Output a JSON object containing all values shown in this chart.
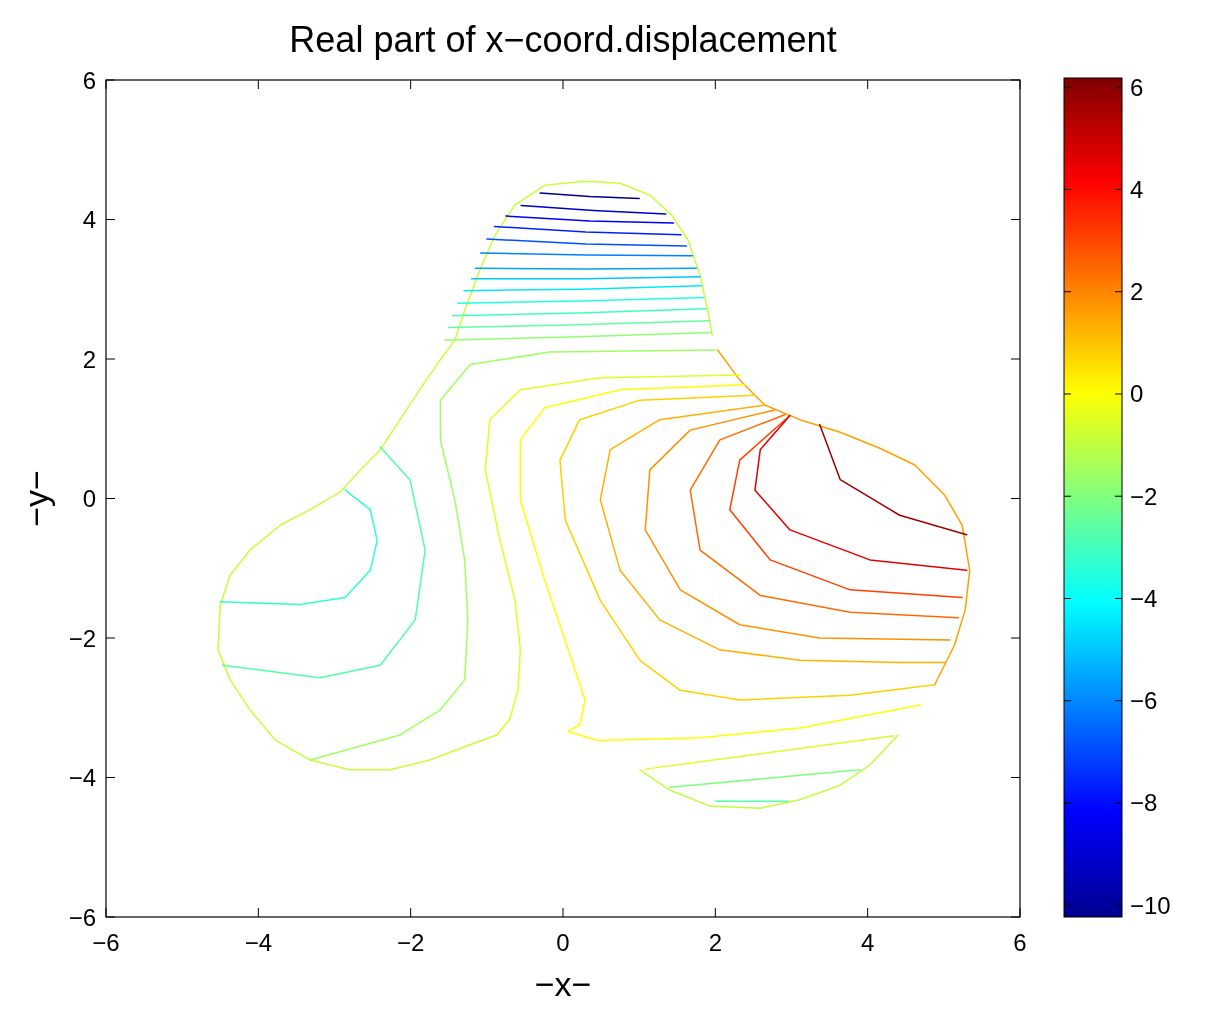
{
  "chart_data": {
    "type": "line",
    "title": "Real part of x−coord.displacement",
    "xlabel": "−x−",
    "ylabel": "−y−",
    "xlim": [
      -6,
      6
    ],
    "ylim": [
      -6,
      6
    ],
    "xticks": [
      {
        "value": -6,
        "label": "−6"
      },
      {
        "value": -4,
        "label": "−4"
      },
      {
        "value": -2,
        "label": "−2"
      },
      0,
      2,
      4,
      6
    ],
    "yticks": [
      {
        "value": -6,
        "label": "−6"
      },
      {
        "value": -4,
        "label": "−4"
      },
      {
        "value": -2,
        "label": "−2"
      },
      0,
      2,
      4,
      6
    ],
    "clim": [
      -10.23,
      6.18
    ],
    "cticks": [
      {
        "value": -10,
        "label": "−10"
      },
      {
        "value": -8,
        "label": "−8"
      },
      {
        "value": -6,
        "label": "−6"
      },
      {
        "value": -4,
        "label": "−4"
      },
      {
        "value": -2,
        "label": "−2"
      },
      0,
      2,
      4,
      6
    ],
    "grid": false,
    "marker": "none",
    "line_style": "solid",
    "series": [
      {
        "color": "#c8ff38",
        "x": [
          1.96,
          1.9,
          1.8,
          1.64,
          1.43,
          1.14,
          0.75,
          0.29,
          -0.24,
          -0.63,
          -0.89,
          -1.09,
          -1.29,
          -1.42,
          -1.61,
          -1.88,
          -2.14,
          -2.4,
          -2.66,
          -2.93,
          -3.32,
          -3.71,
          -4.11,
          -4.37,
          -4.5,
          -4.53,
          -4.37,
          -4.11,
          -3.78,
          -3.32,
          -2.8,
          -2.27,
          -1.75,
          -1.22,
          -0.87
        ],
        "values": [
          2.34,
          2.7,
          3.2,
          3.71,
          4.06,
          4.35,
          4.52,
          4.55,
          4.49,
          4.21,
          3.78,
          3.28,
          2.7,
          2.27,
          1.99,
          1.56,
          1.13,
          0.7,
          0.41,
          0.09,
          -0.16,
          -0.38,
          -0.74,
          -1.1,
          -1.53,
          -2.17,
          -2.6,
          -3.03,
          -3.46,
          -3.75,
          -3.89,
          -3.89,
          -3.75,
          -3.53,
          -3.39
        ]
      },
      {
        "color": "#ffa000",
        "x": [
          2.03,
          2.32,
          2.65,
          3.11,
          3.64,
          4.16,
          4.62,
          5.01,
          5.24,
          5.34,
          5.28,
          5.14,
          4.88
        ],
        "values": [
          2.13,
          1.7,
          1.34,
          1.13,
          0.95,
          0.72,
          0.48,
          0.05,
          -0.38,
          -1.03,
          -1.6,
          -2.1,
          -2.67
        ]
      },
      {
        "color": "#c0ff40",
        "x": [
          1.01,
          1.4,
          1.93,
          2.59,
          3.11,
          3.64,
          4.03,
          4.4
        ],
        "values": [
          -3.89,
          -4.18,
          -4.41,
          -4.44,
          -4.32,
          -4.11,
          -3.82,
          -3.39
        ]
      },
      {
        "color": "#d8ff28",
        "x": [
          1.08,
          4.35
        ],
        "values": [
          -3.88,
          -3.4
        ]
      },
      {
        "color": "#00008f",
        "x": [
          -0.3,
          0.35,
          1.0
        ],
        "values": [
          4.38,
          4.33,
          4.3
        ]
      },
      {
        "color": "#0000c8",
        "x": [
          -0.55,
          0.4,
          1.35
        ],
        "values": [
          4.2,
          4.13,
          4.08
        ]
      },
      {
        "color": "#0000ff",
        "x": [
          -0.75,
          0.35,
          1.45
        ],
        "values": [
          4.05,
          3.98,
          3.95
        ]
      },
      {
        "color": "#0020ff",
        "x": [
          -0.9,
          0.3,
          1.55
        ],
        "values": [
          3.9,
          3.82,
          3.78
        ]
      },
      {
        "color": "#0050ff",
        "x": [
          -1.0,
          0.3,
          1.62
        ],
        "values": [
          3.72,
          3.65,
          3.62
        ]
      },
      {
        "color": "#0080ff",
        "x": [
          -1.08,
          0.3,
          1.7
        ],
        "values": [
          3.52,
          3.49,
          3.48
        ]
      },
      {
        "color": "#00a0ff",
        "x": [
          -1.15,
          0.3,
          1.75
        ],
        "values": [
          3.3,
          3.29,
          3.3
        ]
      },
      {
        "color": "#00c8ff",
        "x": [
          -1.2,
          0.3,
          1.8
        ],
        "values": [
          3.15,
          3.15,
          3.18
        ]
      },
      {
        "color": "#00e8ff",
        "x": [
          -1.3,
          0.25,
          1.82
        ],
        "values": [
          2.98,
          3.0,
          3.05
        ]
      },
      {
        "color": "#20ffdf",
        "x": [
          -1.38,
          0.25,
          1.85
        ],
        "values": [
          2.8,
          2.83,
          2.88
        ]
      },
      {
        "color": "#40ffbf",
        "x": [
          -1.45,
          0.2,
          1.88
        ],
        "values": [
          2.62,
          2.66,
          2.72
        ]
      },
      {
        "color": "#60ff9f",
        "x": [
          -1.5,
          0.2,
          1.92
        ],
        "values": [
          2.45,
          2.49,
          2.55
        ]
      },
      {
        "color": "#90ff70",
        "x": [
          -1.55,
          0.2,
          1.95
        ],
        "values": [
          2.27,
          2.32,
          2.38
        ]
      },
      {
        "color": "#a0ff60",
        "x": [
          2.0,
          -0.17,
          -1.22,
          -1.61,
          -1.61,
          -1.42,
          -1.29,
          -1.25,
          -1.29,
          -1.61,
          -2.14,
          -2.93,
          -3.32
        ],
        "values": [
          2.13,
          2.1,
          1.92,
          1.41,
          0.84,
          -0.02,
          -0.88,
          -1.74,
          -2.6,
          -3.03,
          -3.39,
          -3.63,
          -3.75
        ]
      },
      {
        "color": "#e0ff20",
        "x": [
          2.32,
          0.49,
          -0.56,
          -0.96,
          -1.02,
          -0.83,
          -0.63,
          -0.56,
          -0.59,
          -0.7,
          -0.87
        ],
        "values": [
          1.77,
          1.73,
          1.56,
          1.13,
          0.41,
          -0.59,
          -1.46,
          -2.17,
          -2.74,
          -3.17,
          -3.39
        ]
      },
      {
        "color": "#ffff00",
        "x": [
          2.39,
          0.75,
          -0.24,
          -0.56,
          -0.56,
          -0.24,
          0.07,
          0.29,
          0.22,
          0.07,
          0.45,
          1.8,
          3.11,
          4.69
        ],
        "values": [
          1.63,
          1.56,
          1.3,
          0.84,
          -0.02,
          -1.17,
          -2.17,
          -2.89,
          -3.24,
          -3.34,
          -3.47,
          -3.43,
          -3.29,
          -2.96
        ]
      },
      {
        "color": "#ffd000",
        "x": [
          2.52,
          1.01,
          0.22,
          -0.04,
          0.03,
          0.49,
          1.01,
          1.54,
          2.32,
          3.77,
          4.88
        ],
        "values": [
          1.48,
          1.41,
          1.13,
          0.55,
          -0.31,
          -1.46,
          -2.32,
          -2.75,
          -2.89,
          -2.82,
          -2.67
        ]
      },
      {
        "color": "#ffb000",
        "x": [
          2.65,
          1.27,
          0.62,
          0.49,
          0.75,
          1.27,
          2.06,
          3.11,
          4.42,
          5.01
        ],
        "values": [
          1.34,
          1.13,
          0.7,
          -0.02,
          -1.03,
          -1.74,
          -2.17,
          -2.32,
          -2.35,
          -2.35
        ]
      },
      {
        "color": "#ff9000",
        "x": [
          2.78,
          1.67,
          1.14,
          1.08,
          1.54,
          2.32,
          3.37,
          5.08
        ],
        "values": [
          1.27,
          0.98,
          0.41,
          -0.45,
          -1.31,
          -1.81,
          -2.0,
          -2.03
        ]
      },
      {
        "color": "#ff6a00",
        "x": [
          2.91,
          2.06,
          1.67,
          1.8,
          2.59,
          3.77,
          5.19
        ],
        "values": [
          1.2,
          0.84,
          0.12,
          -0.74,
          -1.39,
          -1.63,
          -1.71
        ]
      },
      {
        "color": "#ff4000",
        "x": [
          2.98,
          2.32,
          2.19,
          2.72,
          3.77,
          5.24
        ],
        "values": [
          1.19,
          0.55,
          -0.16,
          -0.88,
          -1.31,
          -1.42
        ]
      },
      {
        "color": "#e00000",
        "x": [
          2.98,
          2.59,
          2.52,
          2.98,
          4.03,
          5.3
        ],
        "values": [
          1.19,
          0.7,
          0.12,
          -0.45,
          -0.88,
          -1.03
        ]
      },
      {
        "color": "#a00000",
        "x": [
          3.37,
          3.64,
          4.42,
          5.3
        ],
        "values": [
          1.06,
          0.27,
          -0.24,
          -0.52
        ]
      },
      {
        "color": "#30ffc8",
        "x": [
          -2.86,
          -2.53,
          -2.44,
          -2.53,
          -2.86,
          -3.45,
          -4.5
        ],
        "values": [
          0.12,
          -0.16,
          -0.6,
          -1.03,
          -1.42,
          -1.52,
          -1.48
        ]
      },
      {
        "color": "#50ffa8",
        "x": [
          -2.4,
          -2.01,
          -1.81,
          -1.94,
          -2.4,
          -3.19,
          -4.47
        ],
        "values": [
          0.74,
          0.27,
          -0.74,
          -1.74,
          -2.39,
          -2.57,
          -2.39
        ]
      },
      {
        "color": "#80ff80",
        "x": [
          1.4,
          3.9
        ],
        "values": [
          -4.14,
          -3.89
        ]
      },
      {
        "color": "#50ffa8",
        "x": [
          2.0,
          2.95
        ],
        "values": [
          -4.34,
          -4.34
        ]
      }
    ]
  }
}
